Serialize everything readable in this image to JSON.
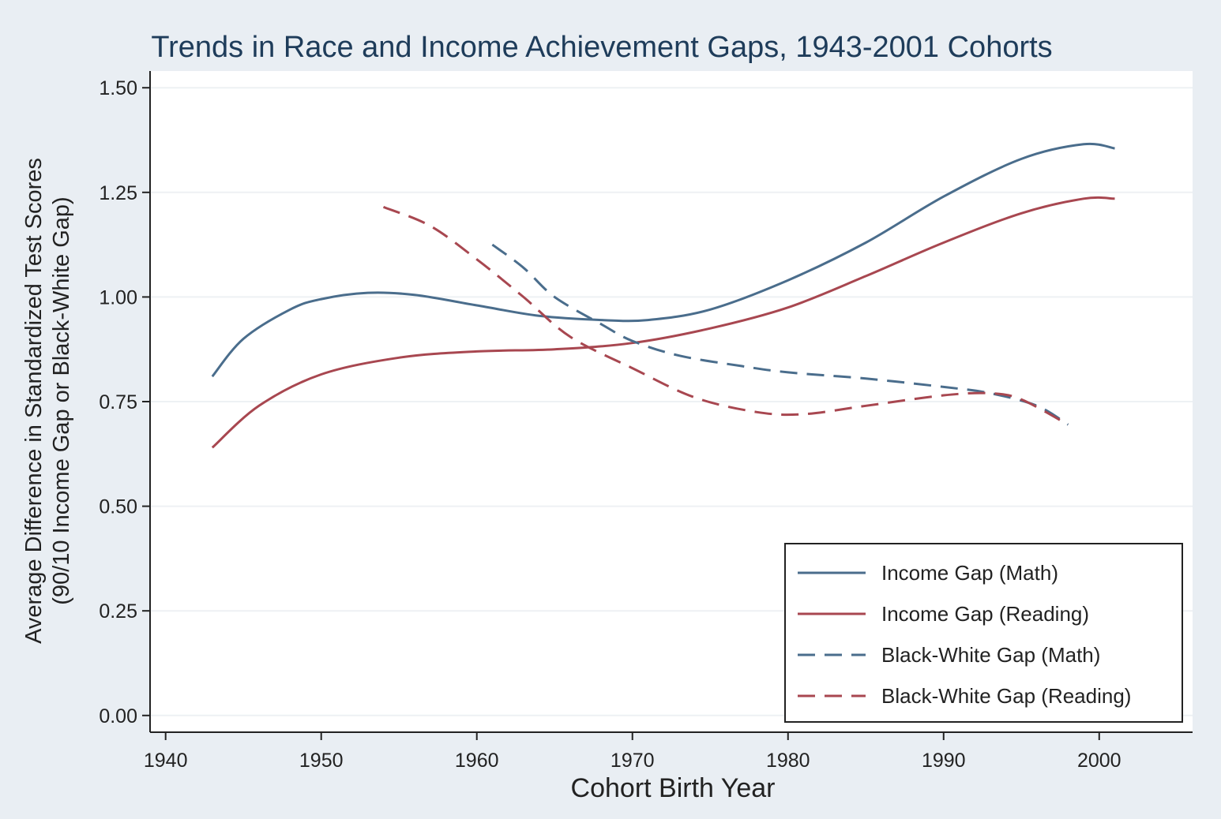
{
  "chart_data": {
    "type": "line",
    "title": "Trends in Race and Income Achievement Gaps, 1943-2001 Cohorts",
    "xlabel": "Cohort Birth Year",
    "ylabel_line1": "Average Difference in Standardized Test Scores",
    "ylabel_line2": "(90/10 Income Gap or Black-White Gap)",
    "xlim": [
      1939,
      2006
    ],
    "ylim": [
      -0.04,
      1.54
    ],
    "xticks": [
      1940,
      1950,
      1960,
      1970,
      1980,
      1990,
      2000
    ],
    "yticks": [
      0.0,
      0.25,
      0.5,
      0.75,
      1.0,
      1.25,
      1.5
    ],
    "ytick_labels": [
      "0.00",
      "0.25",
      "0.50",
      "0.75",
      "1.00",
      "1.25",
      "1.50"
    ],
    "grid": true,
    "legend_position": "bottom-right",
    "series": [
      {
        "name": "Income Gap (Math)",
        "color": "#4a6d8c",
        "dash": "solid",
        "points": [
          [
            1943,
            0.81
          ],
          [
            1945,
            0.9
          ],
          [
            1948,
            0.97
          ],
          [
            1950,
            0.995
          ],
          [
            1953,
            1.01
          ],
          [
            1956,
            1.005
          ],
          [
            1960,
            0.98
          ],
          [
            1964,
            0.955
          ],
          [
            1968,
            0.945
          ],
          [
            1971,
            0.945
          ],
          [
            1975,
            0.97
          ],
          [
            1980,
            1.04
          ],
          [
            1985,
            1.13
          ],
          [
            1990,
            1.24
          ],
          [
            1995,
            1.33
          ],
          [
            1999,
            1.365
          ],
          [
            2001,
            1.355
          ]
        ]
      },
      {
        "name": "Income Gap (Reading)",
        "color": "#a84750",
        "dash": "solid",
        "points": [
          [
            1943,
            0.64
          ],
          [
            1946,
            0.74
          ],
          [
            1950,
            0.815
          ],
          [
            1955,
            0.855
          ],
          [
            1960,
            0.87
          ],
          [
            1965,
            0.875
          ],
          [
            1970,
            0.89
          ],
          [
            1975,
            0.925
          ],
          [
            1980,
            0.975
          ],
          [
            1985,
            1.05
          ],
          [
            1990,
            1.13
          ],
          [
            1995,
            1.2
          ],
          [
            1999,
            1.235
          ],
          [
            2001,
            1.235
          ]
        ]
      },
      {
        "name": "Black-White Gap (Math)",
        "color": "#4a6d8c",
        "dash": "dashed",
        "points": [
          [
            1961,
            1.125
          ],
          [
            1963,
            1.07
          ],
          [
            1965,
            1.0
          ],
          [
            1968,
            0.935
          ],
          [
            1970,
            0.895
          ],
          [
            1973,
            0.86
          ],
          [
            1977,
            0.835
          ],
          [
            1980,
            0.82
          ],
          [
            1985,
            0.805
          ],
          [
            1990,
            0.785
          ],
          [
            1993,
            0.77
          ],
          [
            1996,
            0.74
          ],
          [
            1998,
            0.695
          ]
        ]
      },
      {
        "name": "Black-White Gap (Reading)",
        "color": "#a84750",
        "dash": "dashed",
        "points": [
          [
            1954,
            1.215
          ],
          [
            1957,
            1.17
          ],
          [
            1960,
            1.09
          ],
          [
            1963,
            1.0
          ],
          [
            1966,
            0.905
          ],
          [
            1970,
            0.83
          ],
          [
            1974,
            0.76
          ],
          [
            1978,
            0.725
          ],
          [
            1981,
            0.72
          ],
          [
            1985,
            0.74
          ],
          [
            1990,
            0.765
          ],
          [
            1993,
            0.77
          ],
          [
            1995,
            0.755
          ],
          [
            1998,
            0.695
          ]
        ]
      }
    ]
  }
}
